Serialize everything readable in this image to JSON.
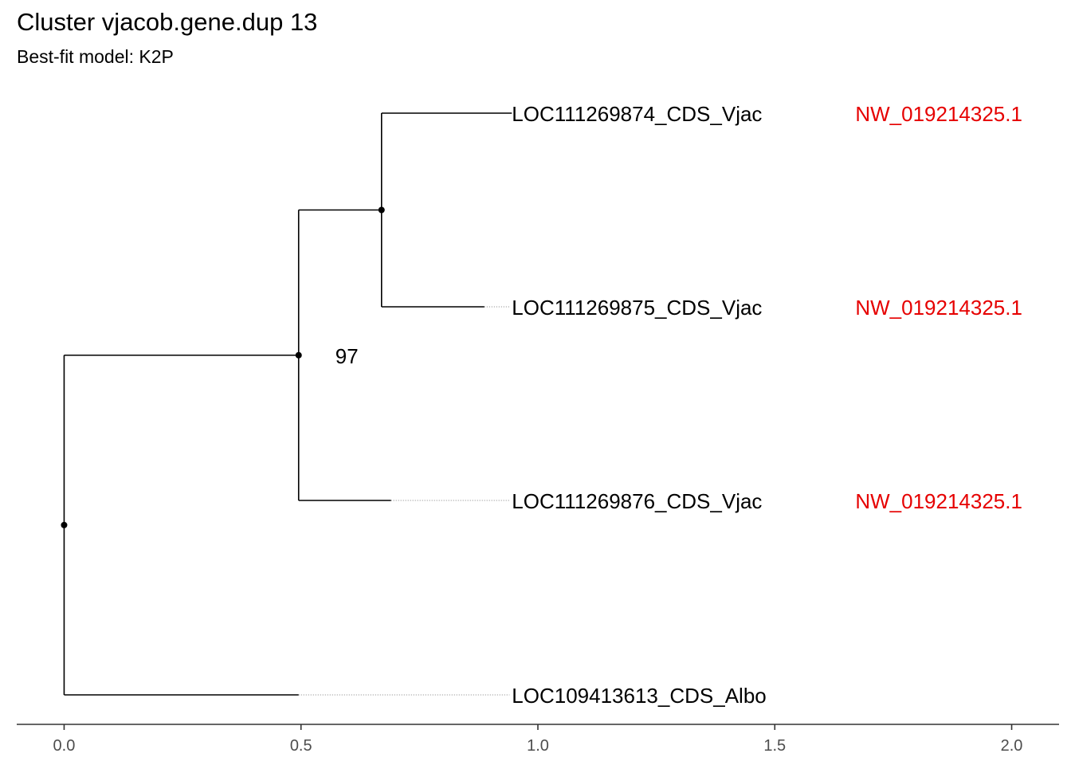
{
  "title": "Cluster vjacob.gene.dup 13",
  "subtitle": "Best-fit model: K2P",
  "colors": {
    "branch": "#000000",
    "contig": "#e60000",
    "axis": "#333333",
    "tick_label": "#4d4d4d"
  },
  "chart_data": {
    "type": "phylogenetic-tree",
    "x_axis": {
      "range": [
        -0.1,
        2.1
      ],
      "ticks": [
        0.0,
        0.5,
        1.0,
        1.5,
        2.0
      ],
      "tick_labels": [
        "0.0",
        "0.5",
        "1.0",
        "1.5",
        "2.0"
      ]
    },
    "tips": [
      {
        "label": "LOC111269874_CDS_Vjac",
        "branch_end": 0.945,
        "contig": "NW_019214325.1"
      },
      {
        "label": "LOC111269875_CDS_Vjac",
        "branch_end": 0.887,
        "contig": "NW_019214325.1"
      },
      {
        "label": "LOC111269876_CDS_Vjac",
        "branch_end": 0.69,
        "contig": "NW_019214325.1"
      },
      {
        "label": "LOC109413613_CDS_Albo",
        "branch_end": 0.495,
        "contig": ""
      }
    ],
    "nodes": [
      {
        "id": "root",
        "x": 0.0,
        "children": [
          "n1",
          "t3"
        ]
      },
      {
        "id": "n1",
        "x": 0.495,
        "support": "97",
        "children": [
          "n2",
          "t2"
        ]
      },
      {
        "id": "n2",
        "x": 0.67,
        "support": "",
        "children": [
          "t0",
          "t1"
        ]
      }
    ],
    "label_x": 0.945,
    "contig_x": 1.67
  }
}
